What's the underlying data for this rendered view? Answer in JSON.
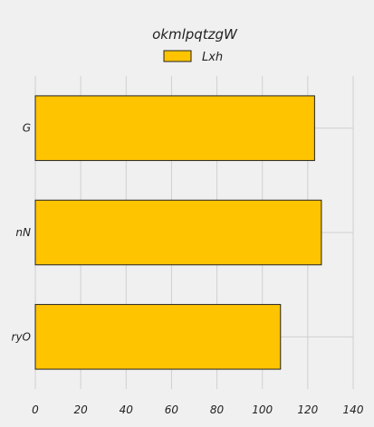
{
  "chart_data": {
    "type": "bar",
    "orientation": "horizontal",
    "title": "okmlpqtzgW",
    "xlabel": "",
    "ylabel": "",
    "categories": [
      "G",
      "nN",
      "ryO"
    ],
    "series": [
      {
        "name": "Lxh",
        "values": [
          123,
          126,
          108
        ],
        "color": "#ffc400"
      }
    ],
    "xlim": [
      0,
      140
    ],
    "xticks": [
      0,
      20,
      40,
      60,
      80,
      100,
      120,
      140
    ],
    "grid": true,
    "legend_position": "top-center",
    "background": "#f0f0f0",
    "bar_edge_color": "#222222"
  }
}
